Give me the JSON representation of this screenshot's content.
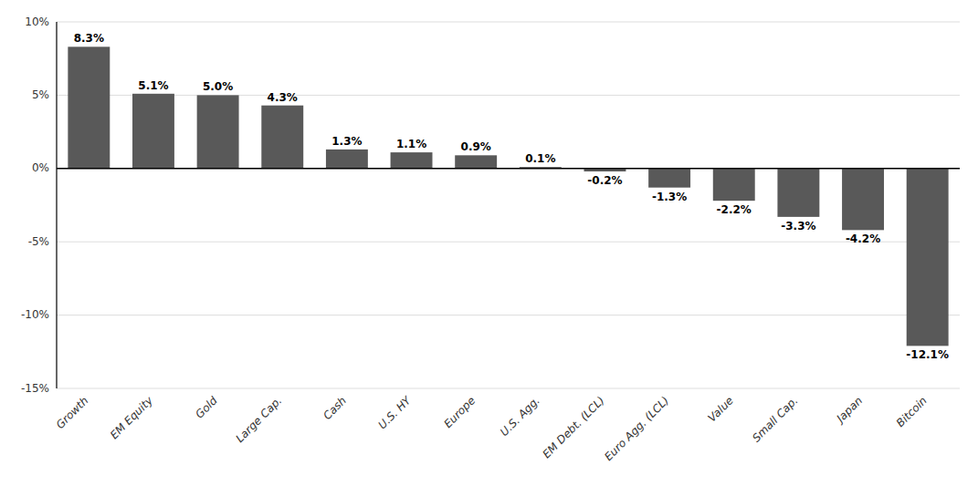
{
  "chart_data": {
    "type": "bar",
    "categories": [
      "Growth",
      "EM Equity",
      "Gold",
      "Large Cap.",
      "Cash",
      "U.S. HY",
      "Europe",
      "U.S. Agg.",
      "EM Debt. (LCL)",
      "Euro Agg. (LCL)",
      "Value",
      "Small Cap.",
      "Japan",
      "Bitcoin"
    ],
    "values": [
      8.3,
      5.1,
      5.0,
      4.3,
      1.3,
      1.1,
      0.9,
      0.1,
      -0.2,
      -1.3,
      -2.2,
      -3.3,
      -4.2,
      -12.1
    ],
    "value_labels": [
      "8.3%",
      "5.1%",
      "5.0%",
      "4.3%",
      "1.3%",
      "1.1%",
      "0.9%",
      "0.1%",
      "-0.2%",
      "-1.3%",
      "-2.2%",
      "-3.3%",
      "-4.2%",
      "-12.1%"
    ],
    "color": "#595959",
    "ylim": [
      -15,
      10
    ],
    "yticks": [
      {
        "value": -15,
        "label": "-15%"
      },
      {
        "value": -10,
        "label": "-10%"
      },
      {
        "value": -5,
        "label": "-5%"
      },
      {
        "value": 0,
        "label": "0%"
      },
      {
        "value": 5,
        "label": "5%"
      },
      {
        "value": 10,
        "label": "10%"
      }
    ],
    "grid": true,
    "data_labels": true
  }
}
